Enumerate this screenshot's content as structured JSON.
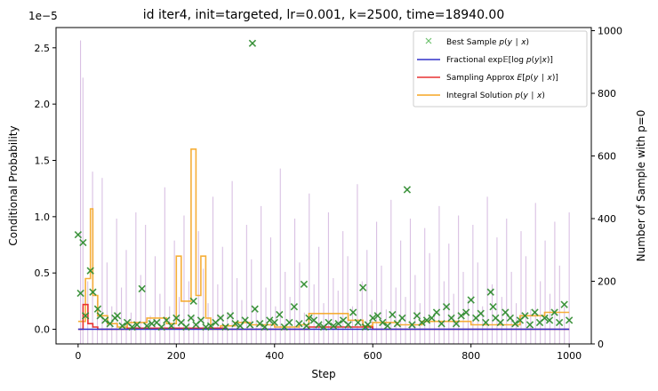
{
  "chart_data": {
    "type": "line",
    "title": "id iter4, init=targeted, lr=0.001, k=2500, time=18940.00",
    "xlabel": "Step",
    "ylabel": "Conditional Probability",
    "ylabel_right": "Number of Sample with p=0",
    "y_offset_label": "1e−5",
    "xlim": [
      -45,
      1045
    ],
    "ylim": [
      -0.13,
      2.68
    ],
    "ylim_right": [
      0,
      1010
    ],
    "x_ticks": [
      0,
      200,
      400,
      600,
      800,
      1000
    ],
    "x_tick_labels": [
      "0",
      "200",
      "400",
      "600",
      "800",
      "1000"
    ],
    "y_ticks": [
      0,
      0.5,
      1.0,
      1.5,
      2.0,
      2.5
    ],
    "y_tick_labels": [
      "0.0",
      "0.5",
      "1.0",
      "1.5",
      "2.0",
      "2.5"
    ],
    "y_ticks_right": [
      0,
      200,
      400,
      600,
      800,
      1000
    ],
    "y_tick_labels_right": [
      "0",
      "200",
      "400",
      "600",
      "800",
      "1000"
    ],
    "legend_position": "top-right",
    "colors": {
      "best": "#2e8b2e",
      "fractional": "#3232c8",
      "sampling": "#e83232",
      "integral": "#f5a623",
      "zero_bars": "#9b59b6",
      "right_label": "#800080"
    },
    "series": [
      {
        "name": "Best Sample $p(y \\mid x)$",
        "kind": "scatter",
        "x": [
          0,
          5,
          10,
          15,
          25,
          30,
          40,
          45,
          55,
          65,
          75,
          80,
          90,
          100,
          110,
          120,
          130,
          140,
          150,
          160,
          170,
          180,
          190,
          200,
          210,
          220,
          230,
          235,
          240,
          250,
          260,
          270,
          280,
          290,
          300,
          310,
          320,
          330,
          340,
          350,
          355,
          360,
          370,
          380,
          390,
          400,
          410,
          420,
          430,
          440,
          450,
          460,
          465,
          470,
          480,
          490,
          500,
          510,
          520,
          530,
          540,
          550,
          560,
          570,
          580,
          585,
          590,
          600,
          610,
          620,
          630,
          640,
          650,
          660,
          670,
          680,
          690,
          700,
          710,
          720,
          730,
          740,
          750,
          760,
          770,
          780,
          790,
          800,
          810,
          820,
          830,
          840,
          845,
          850,
          860,
          870,
          880,
          890,
          900,
          910,
          920,
          930,
          940,
          950,
          960,
          970,
          980,
          990,
          1000
        ],
        "y": [
          0.84,
          0.32,
          0.77,
          0.12,
          0.52,
          0.33,
          0.18,
          0.12,
          0.08,
          0.05,
          0.1,
          0.12,
          0.03,
          0.06,
          0.02,
          0.04,
          0.36,
          0.03,
          0.05,
          0.06,
          0.02,
          0.08,
          0.03,
          0.1,
          0.06,
          0.02,
          0.1,
          0.25,
          0.04,
          0.08,
          0.02,
          0.03,
          0.06,
          0.1,
          0.02,
          0.12,
          0.05,
          0.03,
          0.08,
          0.04,
          2.54,
          0.18,
          0.05,
          0.02,
          0.08,
          0.06,
          0.13,
          0.02,
          0.06,
          0.2,
          0.05,
          0.4,
          0.03,
          0.1,
          0.08,
          0.04,
          0.02,
          0.06,
          0.03,
          0.05,
          0.08,
          0.04,
          0.15,
          0.06,
          0.37,
          0.02,
          0.04,
          0.1,
          0.12,
          0.06,
          0.03,
          0.13,
          0.05,
          0.1,
          1.24,
          0.04,
          0.12,
          0.06,
          0.08,
          0.1,
          0.15,
          0.05,
          0.2,
          0.1,
          0.05,
          0.12,
          0.15,
          0.26,
          0.1,
          0.14,
          0.06,
          0.33,
          0.2,
          0.1,
          0.06,
          0.15,
          0.1,
          0.05,
          0.08,
          0.12,
          0.04,
          0.15,
          0.06,
          0.1,
          0.08,
          0.15,
          0.06,
          0.22,
          0.08
        ]
      },
      {
        "name": "Fractional $\\exp\\mathbb{E}[\\log p(y|x)]$",
        "kind": "line",
        "x": [
          0,
          1000
        ],
        "y": [
          0.0,
          0.0
        ]
      },
      {
        "name": "Sampling Approx $E[p(y \\mid x)]$",
        "kind": "line",
        "x": [
          0,
          10,
          10,
          20,
          20,
          30,
          30,
          40,
          40,
          100,
          100,
          300,
          300,
          470,
          470,
          600,
          600,
          1000
        ],
        "y": [
          0.0,
          0.0,
          0.22,
          0.22,
          0.05,
          0.05,
          0.02,
          0.02,
          0.0,
          0.0,
          0.01,
          0.01,
          0.0,
          0.0,
          0.02,
          0.02,
          0.0,
          0.0
        ]
      },
      {
        "name": "Integral Solution $p(y \\mid x)$",
        "kind": "step",
        "x": [
          0,
          15,
          15,
          25,
          25,
          30,
          30,
          40,
          40,
          60,
          60,
          80,
          80,
          100,
          100,
          140,
          140,
          180,
          180,
          200,
          200,
          210,
          210,
          230,
          230,
          240,
          240,
          250,
          250,
          260,
          260,
          270,
          270,
          290,
          290,
          320,
          320,
          350,
          350,
          400,
          400,
          450,
          450,
          470,
          470,
          550,
          550,
          580,
          580,
          600,
          600,
          650,
          650,
          700,
          700,
          800,
          800,
          900,
          900,
          950,
          950,
          1000
        ],
        "y": [
          0.07,
          0.07,
          0.45,
          0.45,
          1.07,
          1.07,
          0.3,
          0.3,
          0.12,
          0.12,
          0.05,
          0.05,
          0.02,
          0.02,
          0.06,
          0.06,
          0.1,
          0.1,
          0.05,
          0.05,
          0.65,
          0.65,
          0.25,
          0.25,
          1.6,
          1.6,
          0.3,
          0.3,
          0.65,
          0.65,
          0.1,
          0.1,
          0.0,
          0.0,
          0.03,
          0.03,
          0.06,
          0.06,
          0.04,
          0.04,
          0.02,
          0.02,
          0.04,
          0.04,
          0.14,
          0.14,
          0.08,
          0.08,
          0.03,
          0.03,
          0.06,
          0.06,
          0.04,
          0.04,
          0.07,
          0.07,
          0.04,
          0.04,
          0.12,
          0.12,
          0.15,
          0.15
        ]
      }
    ],
    "zero_counts": [
      0,
      969,
      850,
      0,
      200,
      0,
      550,
      0,
      140,
      0,
      530,
      0,
      260,
      0,
      120,
      0,
      400,
      0,
      180,
      0,
      300,
      0,
      100,
      0,
      420,
      0,
      220,
      0,
      380,
      0,
      90,
      0,
      280,
      0,
      160,
      0,
      500,
      0,
      120,
      0,
      330,
      0,
      150,
      0,
      410,
      0,
      200,
      0,
      90,
      0,
      360,
      0,
      240,
      0,
      130,
      0,
      470,
      0,
      190,
      0,
      310,
      0,
      100,
      0,
      520,
      0,
      210,
      0,
      140,
      0,
      380,
      0,
      270,
      0,
      110,
      0,
      440,
      0,
      180,
      0,
      340,
      0,
      120,
      0,
      560,
      0,
      230,
      0,
      150,
      0,
      400,
      0,
      260,
      0,
      100,
      0,
      480,
      0,
      190,
      0,
      310,
      0,
      130,
      0,
      420,
      0,
      210,
      0,
      170,
      0,
      360,
      0,
      280,
      0,
      120,
      0,
      510,
      0,
      200,
      0,
      300,
      0,
      140,
      0,
      390,
      0,
      250,
      0,
      110,
      0,
      460,
      0,
      180,
      0,
      330,
      0,
      150,
      0,
      400,
      0,
      220,
      0,
      130,
      0,
      370,
      0,
      290,
      0,
      100,
      0,
      440,
      0,
      200,
      0,
      320,
      0,
      160,
      0,
      410,
      0,
      230,
      0,
      140,
      0,
      380,
      0,
      260,
      0,
      120,
      0,
      470,
      0,
      190,
      0,
      340,
      0,
      150,
      0,
      400,
      0,
      230,
      0,
      130,
      0,
      360,
      0,
      280,
      0,
      110,
      0,
      450,
      0,
      200,
      0,
      330,
      0,
      160,
      0,
      390,
      0,
      250,
      0,
      120,
      0,
      420
    ]
  }
}
